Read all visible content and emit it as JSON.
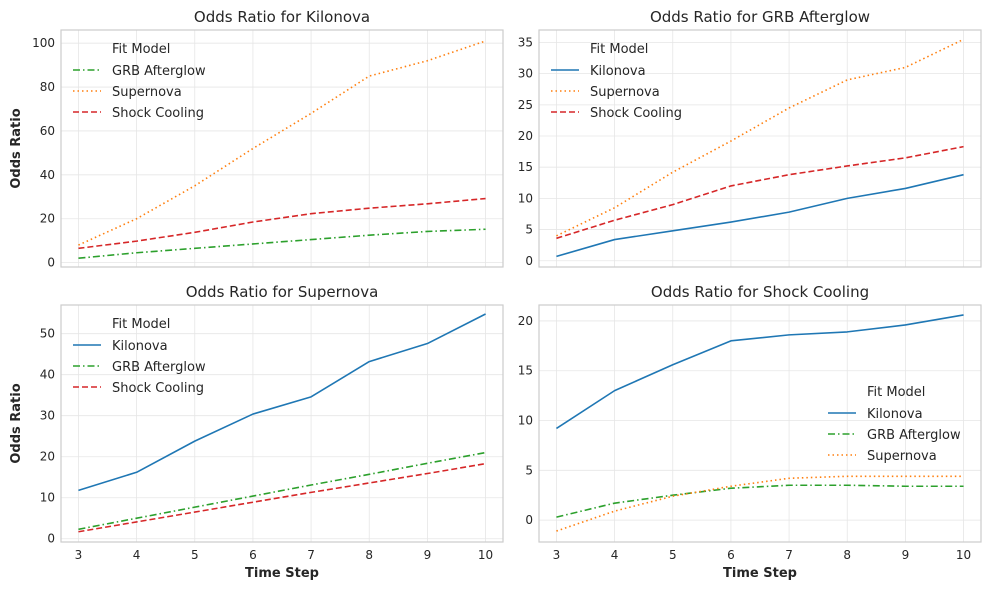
{
  "chart_data": [
    {
      "type": "line",
      "title": "Odds Ratio for Kilonova",
      "xlabel": "",
      "ylabel": "Odds Ratio",
      "x": [
        3,
        4,
        5,
        6,
        7,
        8,
        9,
        10
      ],
      "xlim": [
        2.7,
        10.3
      ],
      "ylim": [
        -2,
        106
      ],
      "yticks": [
        0,
        20,
        40,
        60,
        80,
        100
      ],
      "xticks": [],
      "legend_title": "Fit Model",
      "legend_position": "top-left",
      "series": [
        {
          "name": "GRB Afterglow",
          "color": "#2ca02c",
          "dash": "dashdot",
          "values": [
            2,
            4.5,
            6.5,
            8.5,
            10.5,
            12.5,
            14.2,
            15.2
          ]
        },
        {
          "name": "Supernova",
          "color": "#ff7f0e",
          "dash": "dotted",
          "values": [
            8,
            20,
            35,
            52,
            68,
            85,
            92,
            101
          ]
        },
        {
          "name": "Shock Cooling",
          "color": "#d62728",
          "dash": "dashed",
          "values": [
            6.5,
            9.8,
            13.8,
            18.5,
            22.3,
            24.8,
            26.8,
            29.2
          ]
        }
      ]
    },
    {
      "type": "line",
      "title": "Odds Ratio for GRB Afterglow",
      "xlabel": "",
      "ylabel": "",
      "x": [
        3,
        4,
        5,
        6,
        7,
        8,
        9,
        10
      ],
      "xlim": [
        2.7,
        10.3
      ],
      "ylim": [
        -1,
        37
      ],
      "yticks": [
        0,
        5,
        10,
        15,
        20,
        25,
        30,
        35
      ],
      "xticks": [],
      "legend_title": "Fit Model",
      "legend_position": "top-left",
      "series": [
        {
          "name": "Kilonova",
          "color": "#1f77b4",
          "dash": "solid",
          "values": [
            0.7,
            3.4,
            4.8,
            6.2,
            7.8,
            10,
            11.6,
            13.8
          ]
        },
        {
          "name": "Supernova",
          "color": "#ff7f0e",
          "dash": "dotted",
          "values": [
            4,
            8.5,
            14.2,
            19.2,
            24.5,
            29,
            31,
            35.5
          ]
        },
        {
          "name": "Shock Cooling",
          "color": "#d62728",
          "dash": "dashed",
          "values": [
            3.6,
            6.5,
            9,
            12,
            13.8,
            15.2,
            16.5,
            18.3
          ]
        }
      ]
    },
    {
      "type": "line",
      "title": "Odds Ratio for Supernova",
      "xlabel": "Time Step",
      "ylabel": "Odds Ratio",
      "x": [
        3,
        4,
        5,
        6,
        7,
        8,
        9,
        10
      ],
      "xlim": [
        2.7,
        10.3
      ],
      "ylim": [
        -0.8,
        57
      ],
      "yticks": [
        0,
        10,
        20,
        30,
        40,
        50
      ],
      "xticks": [
        3,
        4,
        5,
        6,
        7,
        8,
        9,
        10
      ],
      "legend_title": "Fit Model",
      "legend_position": "top-left",
      "series": [
        {
          "name": "Kilonova",
          "color": "#1f77b4",
          "dash": "solid",
          "values": [
            11.8,
            16.2,
            23.8,
            30.4,
            34.6,
            43.2,
            47.6,
            54.8
          ]
        },
        {
          "name": "GRB Afterglow",
          "color": "#2ca02c",
          "dash": "dashdot",
          "values": [
            2.3,
            5,
            7.7,
            10.4,
            13.1,
            15.7,
            18.4,
            21
          ]
        },
        {
          "name": "Shock Cooling",
          "color": "#d62728",
          "dash": "dashed",
          "values": [
            1.7,
            4.1,
            6.5,
            8.9,
            11.3,
            13.6,
            15.9,
            18.3
          ]
        }
      ]
    },
    {
      "type": "line",
      "title": "Odds Ratio for Shock Cooling",
      "xlabel": "Time Step",
      "ylabel": "",
      "x": [
        3,
        4,
        5,
        6,
        7,
        8,
        9,
        10
      ],
      "xlim": [
        2.7,
        10.3
      ],
      "ylim": [
        -2.2,
        21.6
      ],
      "yticks": [
        0,
        5,
        10,
        15,
        20
      ],
      "xticks": [
        3,
        4,
        5,
        6,
        7,
        8,
        9,
        10
      ],
      "legend_title": "Fit Model",
      "legend_position": "center-right",
      "series": [
        {
          "name": "Kilonova",
          "color": "#1f77b4",
          "dash": "solid",
          "values": [
            9.2,
            13,
            15.6,
            18,
            18.6,
            18.9,
            19.6,
            20.6
          ]
        },
        {
          "name": "GRB Afterglow",
          "color": "#2ca02c",
          "dash": "dashdot",
          "values": [
            0.3,
            1.7,
            2.5,
            3.2,
            3.5,
            3.5,
            3.4,
            3.4
          ]
        },
        {
          "name": "Supernova",
          "color": "#ff7f0e",
          "dash": "dotted",
          "values": [
            -1.1,
            0.9,
            2.4,
            3.4,
            4.2,
            4.4,
            4.4,
            4.4
          ]
        }
      ]
    }
  ]
}
